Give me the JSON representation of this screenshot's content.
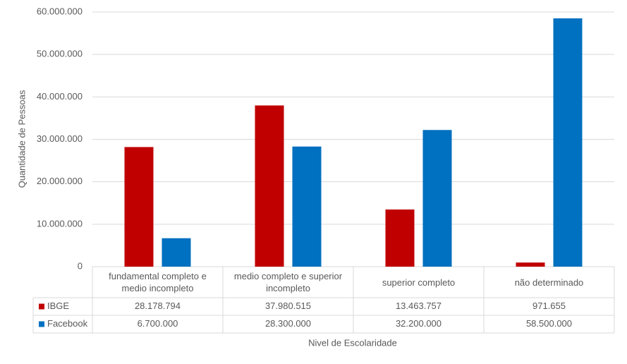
{
  "chart_data": {
    "type": "bar",
    "categories": [
      "fundamental completo e medio incompleto",
      "medio completo e superior incompleto",
      "superior completo",
      "não determinado"
    ],
    "series": [
      {
        "name": "IBGE",
        "color": "#c00000",
        "values": [
          28178794,
          37980515,
          13463757,
          971655
        ],
        "value_labels": [
          "28.178.794",
          "37.980.515",
          "13.463.757",
          "971.655"
        ]
      },
      {
        "name": "Facebook",
        "color": "#0070c0",
        "values": [
          6700000,
          28300000,
          32200000,
          58500000
        ],
        "value_labels": [
          "6.700.000",
          "28.300.000",
          "32.200.000",
          "58.500.000"
        ]
      }
    ],
    "xlabel": "Nivel de Escolaridade",
    "ylabel": "Quantidade de Pessoas",
    "ylim": [
      0,
      60000000
    ],
    "yticks": [
      0,
      {
        "value": 10000000,
        "label": "10.000.000"
      },
      {
        "value": 20000000,
        "label": "20.000.000"
      },
      {
        "value": 30000000,
        "label": "30.000.000"
      },
      {
        "value": 40000000,
        "label": "40.000.000"
      },
      {
        "value": 50000000,
        "label": "50.000.000"
      },
      {
        "value": 60000000,
        "label": "60.000.000"
      }
    ],
    "grid": true
  }
}
